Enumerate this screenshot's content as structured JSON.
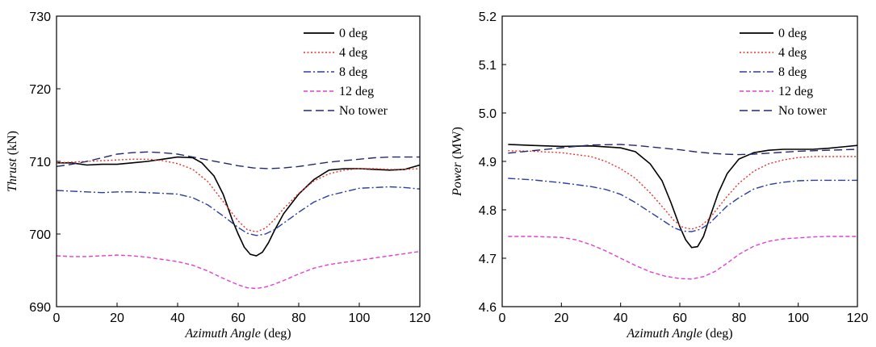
{
  "chart_data": [
    {
      "type": "line",
      "title": "",
      "xlabel": {
        "italic": "Azimuth Angle",
        "unit": "(deg)"
      },
      "ylabel": {
        "italic": "Thrust",
        "unit": "(kN)"
      },
      "xlim": [
        0,
        120
      ],
      "ylim": [
        690,
        730
      ],
      "xticks": [
        0,
        20,
        40,
        60,
        80,
        100,
        120
      ],
      "yticks": [
        690,
        700,
        710,
        720,
        730
      ],
      "grid": false,
      "legend_position": "top-right",
      "series": [
        {
          "name": "0 deg",
          "color": "#000000",
          "dash": "solid",
          "x": [
            0,
            5,
            10,
            15,
            20,
            25,
            30,
            35,
            40,
            45,
            48,
            52,
            55,
            58,
            60,
            62,
            64,
            66,
            68,
            70,
            72,
            75,
            80,
            85,
            90,
            95,
            100,
            105,
            110,
            115,
            120
          ],
          "y": [
            709.8,
            709.8,
            709.5,
            709.6,
            709.6,
            709.8,
            710.0,
            710.3,
            710.6,
            710.5,
            709.8,
            708.0,
            705.5,
            702.0,
            700.0,
            698.2,
            697.2,
            697.0,
            697.5,
            698.8,
            700.5,
            702.8,
            705.5,
            707.5,
            708.8,
            709.0,
            709.0,
            708.9,
            708.8,
            708.9,
            709.5
          ]
        },
        {
          "name": "4 deg",
          "color": "#e8302a",
          "dash": "dot",
          "x": [
            0,
            5,
            10,
            15,
            20,
            25,
            30,
            35,
            40,
            45,
            50,
            55,
            60,
            63,
            66,
            69,
            72,
            75,
            80,
            85,
            90,
            95,
            100,
            105,
            110,
            115,
            120
          ],
          "y": [
            709.8,
            709.9,
            710.0,
            710.1,
            710.2,
            710.3,
            710.3,
            710.1,
            709.7,
            708.9,
            707.2,
            704.5,
            701.8,
            700.6,
            700.3,
            700.8,
            702.0,
            703.5,
            705.6,
            707.3,
            708.3,
            708.8,
            709.0,
            709.0,
            708.9,
            708.9,
            709.0
          ]
        },
        {
          "name": "8 deg",
          "color": "#2a3f9f",
          "dash": "dashdot",
          "x": [
            0,
            5,
            10,
            15,
            20,
            25,
            30,
            35,
            40,
            45,
            50,
            55,
            60,
            63,
            66,
            69,
            72,
            75,
            80,
            85,
            90,
            95,
            100,
            105,
            110,
            115,
            120
          ],
          "y": [
            706.0,
            705.9,
            705.8,
            705.7,
            705.8,
            705.8,
            705.7,
            705.6,
            705.5,
            705.0,
            704.0,
            702.5,
            700.9,
            700.1,
            699.8,
            700.0,
            700.6,
            701.5,
            703.0,
            704.4,
            705.3,
            705.8,
            706.3,
            706.4,
            706.5,
            706.4,
            706.2
          ]
        },
        {
          "name": "12 deg",
          "color": "#e040d0",
          "dash": "dash-short",
          "x": [
            0,
            5,
            10,
            15,
            20,
            25,
            30,
            35,
            40,
            45,
            50,
            55,
            60,
            63,
            66,
            69,
            72,
            75,
            80,
            85,
            90,
            95,
            100,
            105,
            110,
            115,
            120
          ],
          "y": [
            697.0,
            696.9,
            696.9,
            697.0,
            697.1,
            697.0,
            696.8,
            696.5,
            696.2,
            695.7,
            694.9,
            693.9,
            693.0,
            692.6,
            692.5,
            692.7,
            693.1,
            693.6,
            694.5,
            695.3,
            695.8,
            696.1,
            696.4,
            696.7,
            697.0,
            697.3,
            697.6
          ]
        },
        {
          "name": "No tower",
          "color": "#1f2a6e",
          "dash": "dash-long",
          "x": [
            0,
            5,
            10,
            15,
            20,
            25,
            30,
            35,
            40,
            45,
            50,
            55,
            60,
            65,
            70,
            75,
            80,
            85,
            90,
            95,
            100,
            105,
            110,
            115,
            120
          ],
          "y": [
            709.3,
            709.6,
            710.0,
            710.5,
            711.0,
            711.2,
            711.3,
            711.2,
            711.0,
            710.6,
            710.2,
            709.8,
            709.4,
            709.1,
            709.0,
            709.1,
            709.3,
            709.6,
            709.9,
            710.1,
            710.3,
            710.5,
            710.6,
            710.6,
            710.6
          ]
        }
      ]
    },
    {
      "type": "line",
      "title": "",
      "xlabel": {
        "italic": "Azimuth Angle",
        "unit": "(deg)"
      },
      "ylabel": {
        "italic": "Power",
        "unit": "(MW)"
      },
      "xlim": [
        0,
        120
      ],
      "ylim": [
        4.6,
        5.2
      ],
      "xticks": [
        0,
        20,
        40,
        60,
        80,
        100,
        120
      ],
      "yticks": [
        4.6,
        4.7,
        4.8,
        4.9,
        5.0,
        5.1,
        5.2
      ],
      "grid": false,
      "legend_position": "top-right",
      "series": [
        {
          "name": "0 deg",
          "color": "#000000",
          "dash": "solid",
          "x": [
            2,
            10,
            20,
            30,
            40,
            45,
            50,
            54,
            57,
            60,
            62,
            64,
            66,
            68,
            70,
            73,
            76,
            80,
            85,
            90,
            95,
            100,
            105,
            110,
            115,
            120
          ],
          "y": [
            4.935,
            4.933,
            4.931,
            4.932,
            4.928,
            4.92,
            4.895,
            4.86,
            4.815,
            4.765,
            4.738,
            4.722,
            4.724,
            4.745,
            4.782,
            4.835,
            4.875,
            4.905,
            4.918,
            4.923,
            4.925,
            4.925,
            4.925,
            4.927,
            4.93,
            4.933
          ]
        },
        {
          "name": "4 deg",
          "color": "#e8302a",
          "dash": "dot",
          "x": [
            2,
            10,
            20,
            30,
            35,
            40,
            45,
            50,
            55,
            58,
            61,
            64,
            67,
            70,
            73,
            76,
            80,
            85,
            90,
            95,
            100,
            105,
            110,
            115,
            120
          ],
          "y": [
            4.922,
            4.921,
            4.918,
            4.91,
            4.9,
            4.885,
            4.865,
            4.835,
            4.8,
            4.778,
            4.764,
            4.76,
            4.766,
            4.782,
            4.805,
            4.828,
            4.855,
            4.88,
            4.895,
            4.903,
            4.908,
            4.91,
            4.91,
            4.91,
            4.91
          ]
        },
        {
          "name": "8 deg",
          "color": "#2a3f9f",
          "dash": "dashdot",
          "x": [
            2,
            10,
            20,
            30,
            35,
            40,
            45,
            50,
            55,
            58,
            61,
            64,
            67,
            70,
            73,
            76,
            80,
            85,
            90,
            95,
            100,
            105,
            110,
            115,
            120
          ],
          "y": [
            4.865,
            4.862,
            4.856,
            4.848,
            4.842,
            4.832,
            4.815,
            4.795,
            4.775,
            4.763,
            4.756,
            4.755,
            4.76,
            4.772,
            4.79,
            4.808,
            4.825,
            4.843,
            4.852,
            4.857,
            4.86,
            4.861,
            4.861,
            4.861,
            4.861
          ]
        },
        {
          "name": "12 deg",
          "color": "#e040d0",
          "dash": "dash-short",
          "x": [
            2,
            10,
            20,
            25,
            30,
            35,
            40,
            45,
            50,
            55,
            60,
            64,
            68,
            72,
            76,
            80,
            85,
            90,
            95,
            100,
            105,
            110,
            115,
            120
          ],
          "y": [
            4.745,
            4.745,
            4.743,
            4.738,
            4.728,
            4.715,
            4.7,
            4.685,
            4.672,
            4.663,
            4.658,
            4.657,
            4.662,
            4.673,
            4.69,
            4.708,
            4.725,
            4.735,
            4.74,
            4.742,
            4.744,
            4.745,
            4.745,
            4.745
          ]
        },
        {
          "name": "No tower",
          "color": "#1f2a6e",
          "dash": "dash-long",
          "x": [
            2,
            10,
            20,
            30,
            40,
            45,
            50,
            55,
            60,
            65,
            70,
            75,
            80,
            85,
            90,
            95,
            100,
            105,
            110,
            115,
            120
          ],
          "y": [
            4.917,
            4.922,
            4.928,
            4.934,
            4.935,
            4.933,
            4.93,
            4.927,
            4.924,
            4.92,
            4.917,
            4.915,
            4.914,
            4.915,
            4.917,
            4.919,
            4.921,
            4.922,
            4.923,
            4.924,
            4.925
          ]
        }
      ]
    }
  ]
}
